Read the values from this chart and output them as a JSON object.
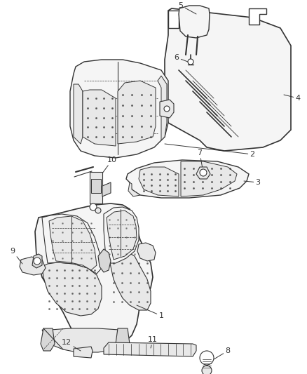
{
  "background_color": "#ffffff",
  "fig_width": 4.38,
  "fig_height": 5.33,
  "dpi": 100,
  "line_color": "#333333",
  "line_width": 0.8,
  "label_fontsize": 8,
  "fill_light": "#f5f5f5",
  "fill_mid": "#e8e8e8",
  "fill_dark": "#d8d8d8"
}
